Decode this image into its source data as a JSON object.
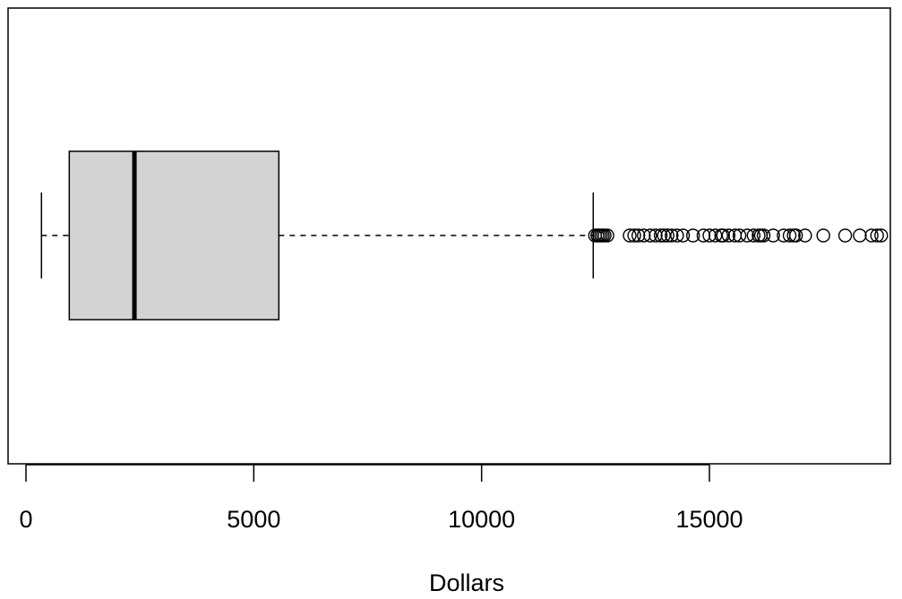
{
  "chart_data": {
    "type": "boxplot",
    "orientation": "horizontal",
    "title": "",
    "xlabel": "Dollars",
    "ylabel": "",
    "xlim": [
      -100,
      18900
    ],
    "x_ticks": [
      0,
      5000,
      10000,
      15000
    ],
    "x_tick_labels": [
      "0",
      "5000",
      "10000",
      "15000"
    ],
    "grid": false,
    "colors": {
      "box_fill": "#d3d3d3",
      "line": "#000000"
    },
    "box": {
      "whisker_low": 340,
      "q1": 950,
      "median": 2380,
      "q3": 5550,
      "whisker_high": 12450
    },
    "outliers": [
      12490,
      12540,
      12580,
      12620,
      12660,
      12700,
      12760,
      13250,
      13350,
      13440,
      13560,
      13700,
      13820,
      13930,
      14000,
      14080,
      14170,
      14290,
      14420,
      14640,
      14870,
      15000,
      15130,
      15260,
      15300,
      15420,
      15560,
      15660,
      15830,
      15970,
      16080,
      16130,
      16190,
      16400,
      16630,
      16760,
      16850,
      16900,
      17100,
      17500,
      17980,
      18300,
      18560,
      18680,
      18770
    ]
  }
}
